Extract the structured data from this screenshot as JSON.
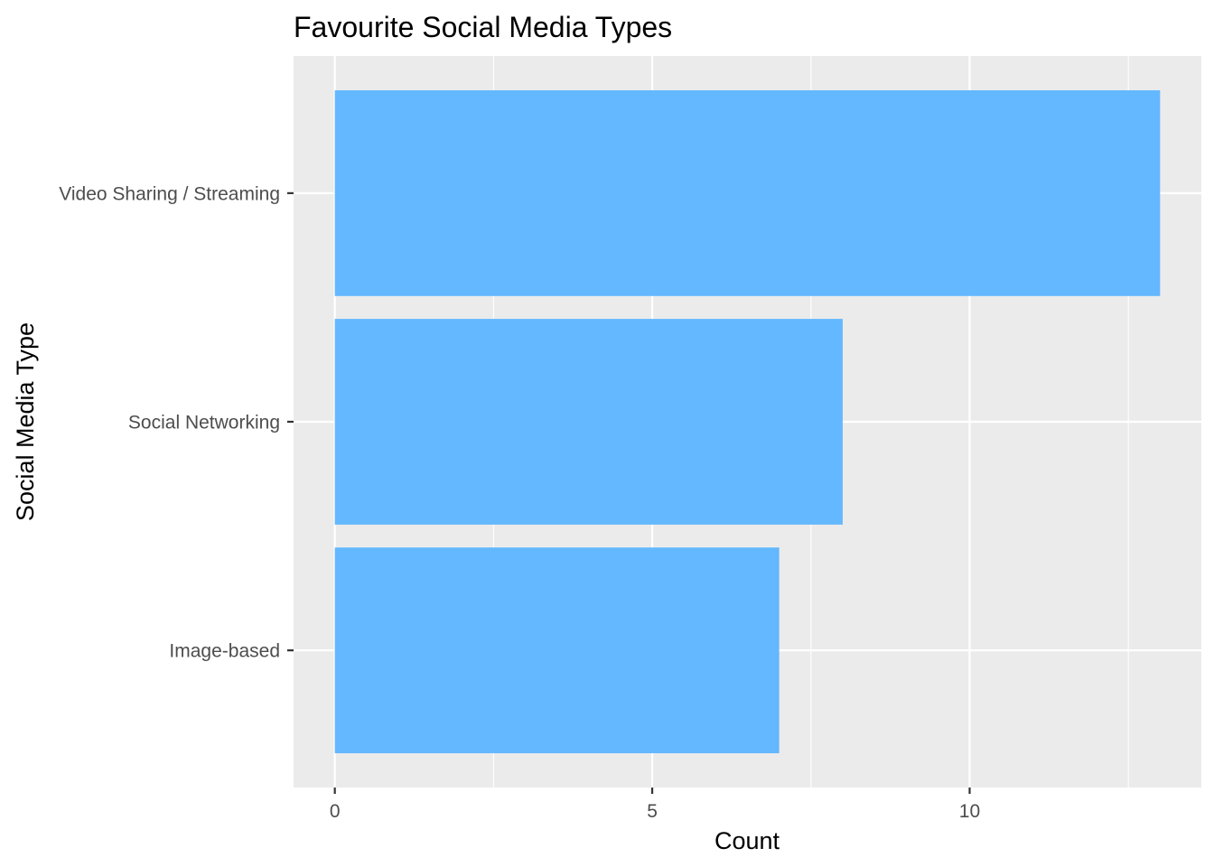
{
  "chart_data": {
    "type": "bar",
    "orientation": "horizontal",
    "title": "Favourite Social Media Types",
    "xlabel": "Count",
    "ylabel": "Social Media Type",
    "categories": [
      "Image-based",
      "Social Networking",
      "Video Sharing / Streaming"
    ],
    "values": [
      7,
      8,
      13
    ],
    "xlim": [
      -0.65,
      13.65
    ],
    "x_ticks": [
      0,
      5,
      10
    ],
    "x_tick_labels": [
      "0",
      "5",
      "10"
    ],
    "grid": true,
    "legend": "none",
    "colors": {
      "bar": "#63b8ff",
      "panel_background": "#ebebeb",
      "grid": "#ffffff",
      "tick_text": "#4d4d4d",
      "tick_mark": "#333333"
    }
  }
}
